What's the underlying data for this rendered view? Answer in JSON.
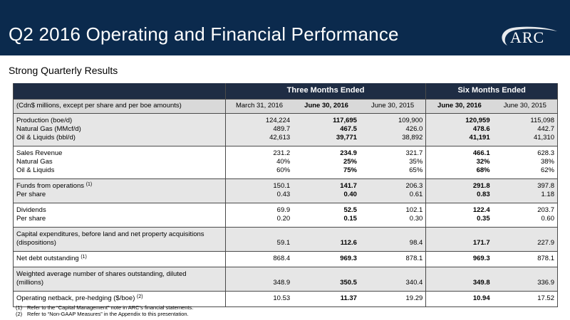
{
  "header": {
    "title": "Q2 2016 Operating and Financial Performance",
    "logo_text": "ARC"
  },
  "subtitle": "Strong Quarterly Results",
  "table": {
    "group_headers": [
      "Three Months Ended",
      "Six Months Ended"
    ],
    "column_headers": [
      "(Cdn$ millions, except per share and per boe amounts)",
      "March 31, 2016",
      "June 30, 2016",
      "June 30, 2015",
      "June 30, 2016",
      "June 30, 2015"
    ],
    "rows": {
      "production": [
        "Production (boe/d)",
        "124,224",
        "117,695",
        "109,900",
        "120,959",
        "115,098"
      ],
      "natural_gas": [
        "Natural Gas (MMcf/d)",
        "489.7",
        "467.5",
        "426.0",
        "478.6",
        "442.7"
      ],
      "oil_liquids": [
        "Oil & Liquids (bbl/d)",
        "42,613",
        "39,771",
        "38,892",
        "41,191",
        "41,310"
      ],
      "sales_revenue": [
        "Sales Revenue",
        "231.2",
        "234.9",
        "321.7",
        "466.1",
        "628.3"
      ],
      "sr_natural_gas": [
        "Natural Gas",
        "40%",
        "25%",
        "35%",
        "32%",
        "38%"
      ],
      "sr_oil_liquids": [
        "Oil & Liquids",
        "60%",
        "75%",
        "65%",
        "68%",
        "62%"
      ],
      "ffo": [
        "Funds from operations",
        "150.1",
        "141.7",
        "206.3",
        "291.8",
        "397.8"
      ],
      "ffo_per_share": [
        "Per share",
        "0.43",
        "0.40",
        "0.61",
        "0.83",
        "1.18"
      ],
      "dividends": [
        "Dividends",
        "69.9",
        "52.5",
        "102.1",
        "122.4",
        "203.7"
      ],
      "div_per_share": [
        "Per share",
        "0.20",
        "0.15",
        "0.30",
        "0.35",
        "0.60"
      ],
      "capex_line1": "Capital expenditures, before land and net property acquisitions",
      "capex": [
        "(dispositions)",
        "59.1",
        "112.6",
        "98.4",
        "171.7",
        "227.9"
      ],
      "net_debt": [
        "Net debt outstanding",
        "868.4",
        "969.3",
        "878.1",
        "969.3",
        "878.1"
      ],
      "shares_line1": "Weighted average number of shares outstanding, diluted",
      "shares": [
        "(millions)",
        "348.9",
        "350.5",
        "340.4",
        "349.8",
        "336.9"
      ],
      "netback": [
        "Operating netback, pre-hedging ($/boe)",
        "10.53",
        "11.37",
        "19.29",
        "10.94",
        "17.52"
      ]
    },
    "footnote_refs": {
      "one": "(1)",
      "two": "(2)"
    }
  },
  "footnotes": [
    {
      "num": "(1)",
      "text": "Refer to the “Capital Management” note in ARC’s financial statements."
    },
    {
      "num": "(2)",
      "text": "Refer to “Non-GAAP Measures” in the Appendix to this presentation."
    }
  ]
}
